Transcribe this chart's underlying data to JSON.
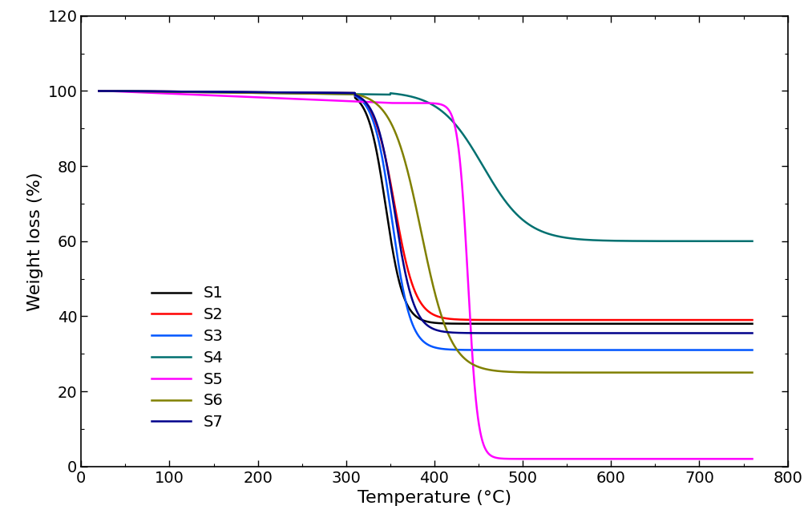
{
  "title": "",
  "xlabel": "Temperature (°C)",
  "ylabel": "Weight loss (%)",
  "xlim": [
    0,
    800
  ],
  "ylim": [
    0,
    120
  ],
  "xticks": [
    0,
    100,
    200,
    300,
    400,
    500,
    600,
    700,
    800
  ],
  "yticks": [
    0,
    20,
    40,
    60,
    80,
    100,
    120
  ],
  "series": {
    "S1": {
      "color": "#000000",
      "lw": 1.8
    },
    "S2": {
      "color": "#ff0000",
      "lw": 1.8
    },
    "S3": {
      "color": "#0055ff",
      "lw": 1.8
    },
    "S4": {
      "color": "#007070",
      "lw": 1.8
    },
    "S5": {
      "color": "#ff00ff",
      "lw": 1.8
    },
    "S6": {
      "color": "#808000",
      "lw": 1.8
    },
    "S7": {
      "color": "#00008b",
      "lw": 1.8
    }
  },
  "background_color": "#ffffff",
  "xlabel_fontsize": 16,
  "ylabel_fontsize": 16,
  "tick_fontsize": 14,
  "legend_fontsize": 14
}
